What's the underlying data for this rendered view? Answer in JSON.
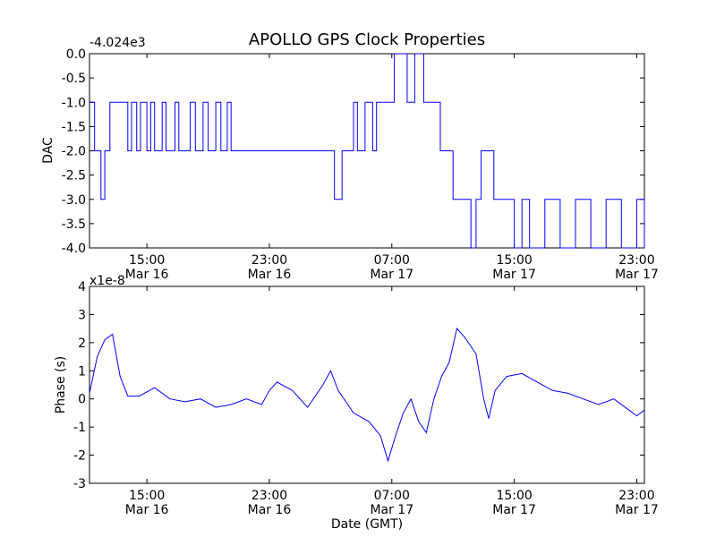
{
  "figure": {
    "title": "APOLLO GPS Clock Properties",
    "xlabel": "Date (GMT)"
  },
  "chart_data": [
    {
      "type": "line",
      "ylabel": "DAC",
      "offset_label": "-4.024e3",
      "ylim": [
        -4.0,
        0.0
      ],
      "yticks": [
        "0.0",
        "-0.5",
        "-1.0",
        "-1.5",
        "-2.0",
        "-2.5",
        "-3.0",
        "-3.5",
        "-4.0"
      ],
      "x_ticks": [
        {
          "time": "15:00",
          "date": "Mar 16"
        },
        {
          "time": "23:00",
          "date": "Mar 16"
        },
        {
          "time": "07:00",
          "date": "Mar 17"
        },
        {
          "time": "15:00",
          "date": "Mar 17"
        },
        {
          "time": "23:00",
          "date": "Mar 17"
        }
      ],
      "grid": false,
      "color": "#0000ff",
      "series": [
        {
          "x_start": "Mar 16 11:15",
          "x_end": "Mar 17 23:30",
          "points": [
            [
              "Mar 16 11:15",
              -1.0
            ],
            [
              "Mar 16 11:35",
              -2.0
            ],
            [
              "Mar 16 12:00",
              -3.0
            ],
            [
              "Mar 16 12:15",
              -2.0
            ],
            [
              "Mar 16 12:35",
              -1.0
            ],
            [
              "Mar 16 13:45",
              -2.0
            ],
            [
              "Mar 16 14:00",
              -1.0
            ],
            [
              "Mar 16 14:20",
              -2.0
            ],
            [
              "Mar 16 14:35",
              -1.0
            ],
            [
              "Mar 16 15:00",
              -2.0
            ],
            [
              "Mar 16 15:15",
              -1.0
            ],
            [
              "Mar 16 15:30",
              -2.0
            ],
            [
              "Mar 16 16:00",
              -1.0
            ],
            [
              "Mar 16 16:15",
              -2.0
            ],
            [
              "Mar 16 16:50",
              -1.0
            ],
            [
              "Mar 16 17:05",
              -2.0
            ],
            [
              "Mar 16 17:50",
              -1.0
            ],
            [
              "Mar 16 18:10",
              -2.0
            ],
            [
              "Mar 16 18:40",
              -1.0
            ],
            [
              "Mar 16 19:00",
              -2.0
            ],
            [
              "Mar 16 19:30",
              -1.0
            ],
            [
              "Mar 16 19:50",
              -2.0
            ],
            [
              "Mar 16 20:15",
              -1.0
            ],
            [
              "Mar 16 20:30",
              -2.0
            ],
            [
              "Mar 17 03:15",
              -3.0
            ],
            [
              "Mar 17 03:45",
              -2.0
            ],
            [
              "Mar 17 04:30",
              -1.0
            ],
            [
              "Mar 17 04:45",
              -2.0
            ],
            [
              "Mar 17 05:15",
              -1.0
            ],
            [
              "Mar 17 05:45",
              -2.0
            ],
            [
              "Mar 17 06:00",
              -1.0
            ],
            [
              "Mar 17 07:10",
              0.0
            ],
            [
              "Mar 17 08:00",
              -1.0
            ],
            [
              "Mar 17 08:30",
              0.0
            ],
            [
              "Mar 17 09:05",
              -1.0
            ],
            [
              "Mar 17 10:10",
              -2.0
            ],
            [
              "Mar 17 11:00",
              -3.0
            ],
            [
              "Mar 17 12:10",
              -4.0
            ],
            [
              "Mar 17 12:30",
              -3.0
            ],
            [
              "Mar 17 12:50",
              -2.0
            ],
            [
              "Mar 17 13:40",
              -3.0
            ],
            [
              "Mar 17 15:00",
              -4.0
            ],
            [
              "Mar 17 15:30",
              -3.0
            ],
            [
              "Mar 17 16:00",
              -4.0
            ],
            [
              "Mar 17 17:00",
              -3.0
            ],
            [
              "Mar 17 18:00",
              -4.0
            ],
            [
              "Mar 17 19:00",
              -3.0
            ],
            [
              "Mar 17 20:00",
              -4.0
            ],
            [
              "Mar 17 21:00",
              -3.0
            ],
            [
              "Mar 17 22:00",
              -4.0
            ],
            [
              "Mar 17 23:00",
              -3.0
            ],
            [
              "Mar 17 23:30",
              -4.0
            ]
          ]
        }
      ]
    },
    {
      "type": "line",
      "ylabel": "Phase (s)",
      "offset_label": "x1e-8",
      "ylim": [
        -3,
        4
      ],
      "yticks": [
        "4",
        "3",
        "2",
        "1",
        "0",
        "-1",
        "-2",
        "-3"
      ],
      "x_ticks": [
        {
          "time": "15:00",
          "date": "Mar 16"
        },
        {
          "time": "23:00",
          "date": "Mar 16"
        },
        {
          "time": "07:00",
          "date": "Mar 17"
        },
        {
          "time": "15:00",
          "date": "Mar 17"
        },
        {
          "time": "23:00",
          "date": "Mar 17"
        }
      ],
      "grid": false,
      "color": "#0000ff",
      "series": [
        {
          "x_start": "Mar 16 11:15",
          "x_end": "Mar 17 23:30",
          "points": [
            [
              "Mar 16 11:15",
              0.2
            ],
            [
              "Mar 16 11:45",
              1.5
            ],
            [
              "Mar 16 12:15",
              2.1
            ],
            [
              "Mar 16 12:45",
              2.3
            ],
            [
              "Mar 16 13:15",
              0.8
            ],
            [
              "Mar 16 13:45",
              0.1
            ],
            [
              "Mar 16 14:30",
              0.1
            ],
            [
              "Mar 16 15:30",
              0.4
            ],
            [
              "Mar 16 16:30",
              0.0
            ],
            [
              "Mar 16 17:30",
              -0.1
            ],
            [
              "Mar 16 18:30",
              0.0
            ],
            [
              "Mar 16 19:30",
              -0.3
            ],
            [
              "Mar 16 20:30",
              -0.2
            ],
            [
              "Mar 16 21:30",
              0.0
            ],
            [
              "Mar 16 22:30",
              -0.2
            ],
            [
              "Mar 16 23:00",
              0.3
            ],
            [
              "Mar 16 23:30",
              0.6
            ],
            [
              "Mar 17 00:30",
              0.3
            ],
            [
              "Mar 17 01:30",
              -0.3
            ],
            [
              "Mar 17 02:30",
              0.5
            ],
            [
              "Mar 17 03:00",
              1.0
            ],
            [
              "Mar 17 03:30",
              0.3
            ],
            [
              "Mar 17 04:30",
              -0.5
            ],
            [
              "Mar 17 05:30",
              -0.8
            ],
            [
              "Mar 17 06:15",
              -1.3
            ],
            [
              "Mar 17 06:45",
              -2.2
            ],
            [
              "Mar 17 07:15",
              -1.3
            ],
            [
              "Mar 17 07:45",
              -0.5
            ],
            [
              "Mar 17 08:15",
              0.0
            ],
            [
              "Mar 17 08:45",
              -0.8
            ],
            [
              "Mar 17 09:15",
              -1.2
            ],
            [
              "Mar 17 09:45",
              0.0
            ],
            [
              "Mar 17 10:15",
              0.8
            ],
            [
              "Mar 17 10:45",
              1.3
            ],
            [
              "Mar 17 11:15",
              2.5
            ],
            [
              "Mar 17 11:45",
              2.2
            ],
            [
              "Mar 17 12:30",
              1.6
            ],
            [
              "Mar 17 13:00",
              0.0
            ],
            [
              "Mar 17 13:20",
              -0.7
            ],
            [
              "Mar 17 13:45",
              0.3
            ],
            [
              "Mar 17 14:30",
              0.8
            ],
            [
              "Mar 17 15:30",
              0.9
            ],
            [
              "Mar 17 16:30",
              0.6
            ],
            [
              "Mar 17 17:30",
              0.3
            ],
            [
              "Mar 17 18:30",
              0.2
            ],
            [
              "Mar 17 19:30",
              0.0
            ],
            [
              "Mar 17 20:30",
              -0.2
            ],
            [
              "Mar 17 21:30",
              0.0
            ],
            [
              "Mar 17 22:30",
              -0.4
            ],
            [
              "Mar 17 23:00",
              -0.6
            ],
            [
              "Mar 17 23:30",
              -0.4
            ]
          ]
        }
      ]
    }
  ]
}
